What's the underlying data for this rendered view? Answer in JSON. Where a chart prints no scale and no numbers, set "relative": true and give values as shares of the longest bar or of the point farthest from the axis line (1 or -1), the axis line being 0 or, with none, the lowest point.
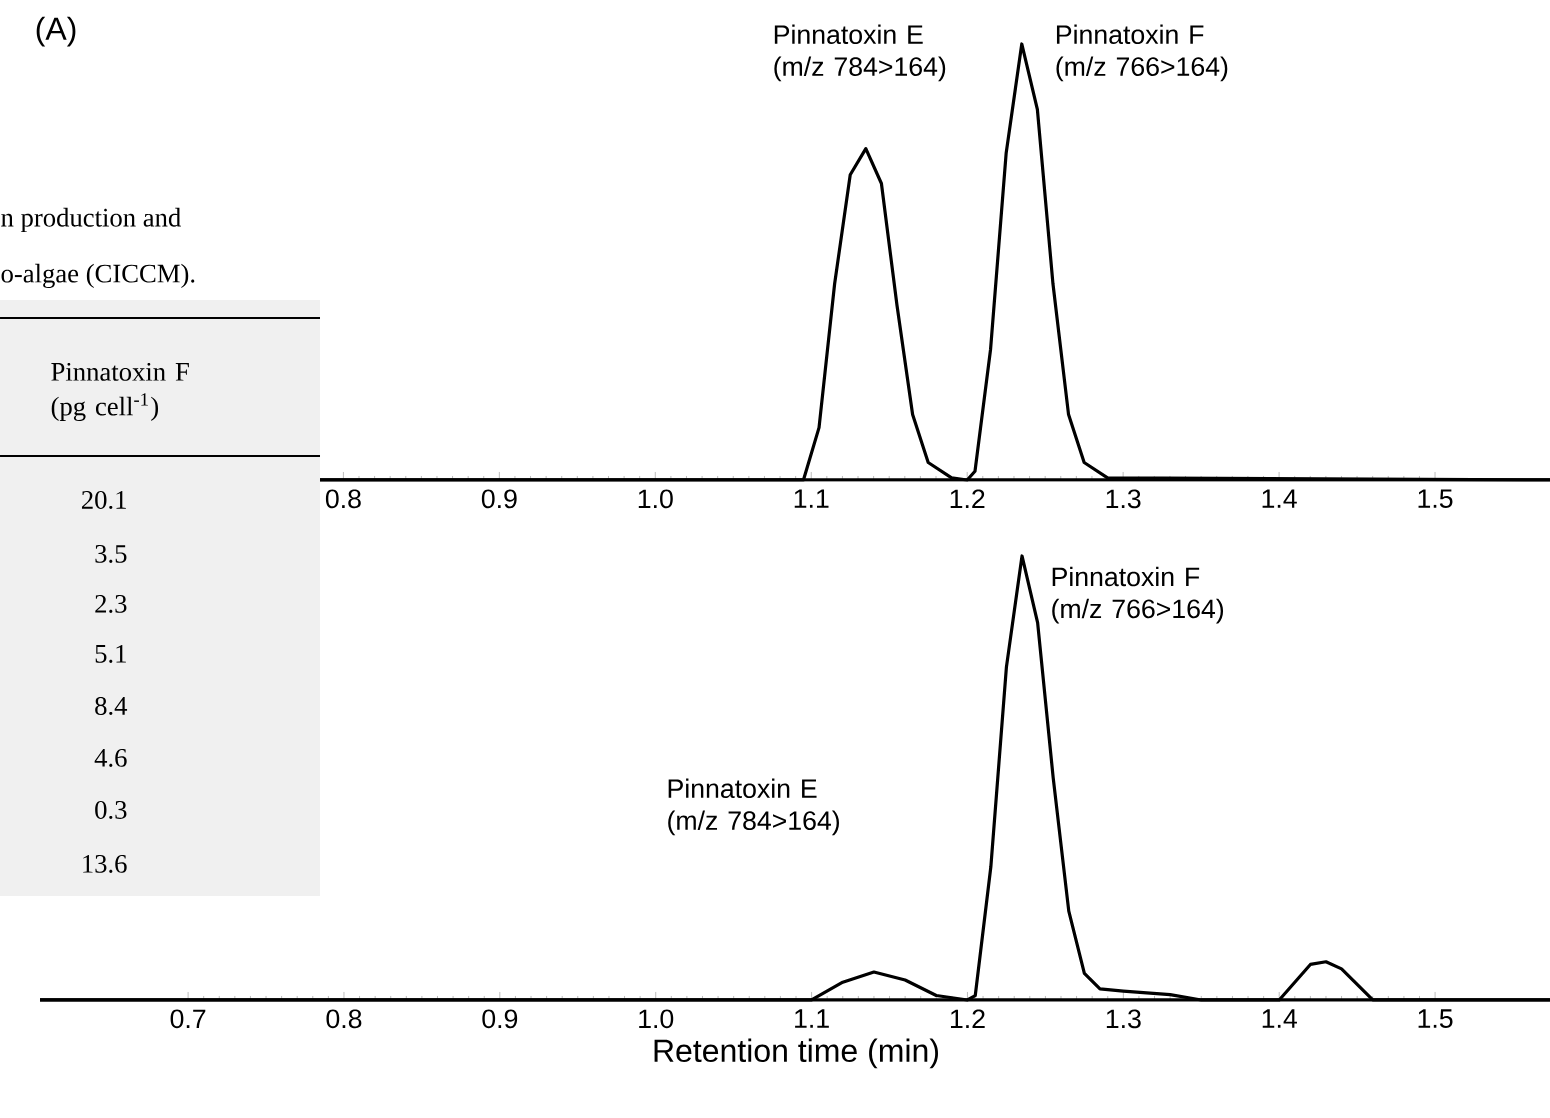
{
  "chart_data": [
    {
      "type": "line",
      "relative": true,
      "color": "#000000",
      "x": [
        0.785,
        1.095,
        1.105,
        1.115,
        1.125,
        1.135,
        1.145,
        1.155,
        1.165,
        1.175,
        1.19,
        1.2,
        1.205,
        1.215,
        1.225,
        1.235,
        1.245,
        1.255,
        1.265,
        1.275,
        1.29,
        1.575
      ],
      "values": [
        0,
        0,
        0.12,
        0.45,
        0.7,
        0.76,
        0.68,
        0.4,
        0.15,
        0.04,
        0.005,
        0,
        0.02,
        0.3,
        0.75,
        1.0,
        0.85,
        0.45,
        0.15,
        0.04,
        0.005,
        0
      ],
      "xlim": [
        0.785,
        1.575
      ],
      "xticks": [
        0.8,
        0.9,
        {
          "value": 1.0,
          "label": "1.0"
        },
        1.1,
        1.2,
        1.3,
        1.4,
        1.5
      ],
      "annotations": [
        "(A)",
        "Pinnatoxin E (m/z 784>164)",
        "Pinnatoxin F (m/z 766>164)"
      ]
    },
    {
      "type": "other",
      "annotations": [
        "n production and",
        "o-algae (CICCM).",
        "Pinnatoxin F (pg cell$^{-1}$)",
        "20.1",
        "3.5",
        "2.3",
        "5.1",
        "8.4",
        "4.6",
        "0.3",
        "13.6"
      ]
    },
    {
      "type": "line",
      "relative": true,
      "color": "#000000",
      "x": [
        0.605,
        1.1,
        1.12,
        1.14,
        1.16,
        1.18,
        1.2,
        1.205,
        1.215,
        1.225,
        1.235,
        1.245,
        1.255,
        1.265,
        1.275,
        1.285,
        1.3,
        1.33,
        1.35,
        1.4,
        1.41,
        1.42,
        1.43,
        1.44,
        1.46,
        1.575
      ],
      "values": [
        0,
        0,
        0.04,
        0.063,
        0.045,
        0.01,
        0,
        0.01,
        0.3,
        0.75,
        1.0,
        0.85,
        0.5,
        0.2,
        0.06,
        0.025,
        0.02,
        0.012,
        0,
        0,
        0.04,
        0.08,
        0.086,
        0.07,
        0,
        0
      ],
      "xlim": [
        0.605,
        1.575
      ],
      "xticks": [
        0.7,
        0.8,
        0.9,
        {
          "value": 1.0,
          "label": "1.0"
        },
        1.1,
        1.2,
        1.3,
        1.4,
        1.5
      ],
      "xlabel": "Retention time (min)",
      "annotations": [
        "Pinnatoxin E (m/z 784>164)",
        "Pinnatoxin F (m/z 766>164)"
      ]
    }
  ]
}
